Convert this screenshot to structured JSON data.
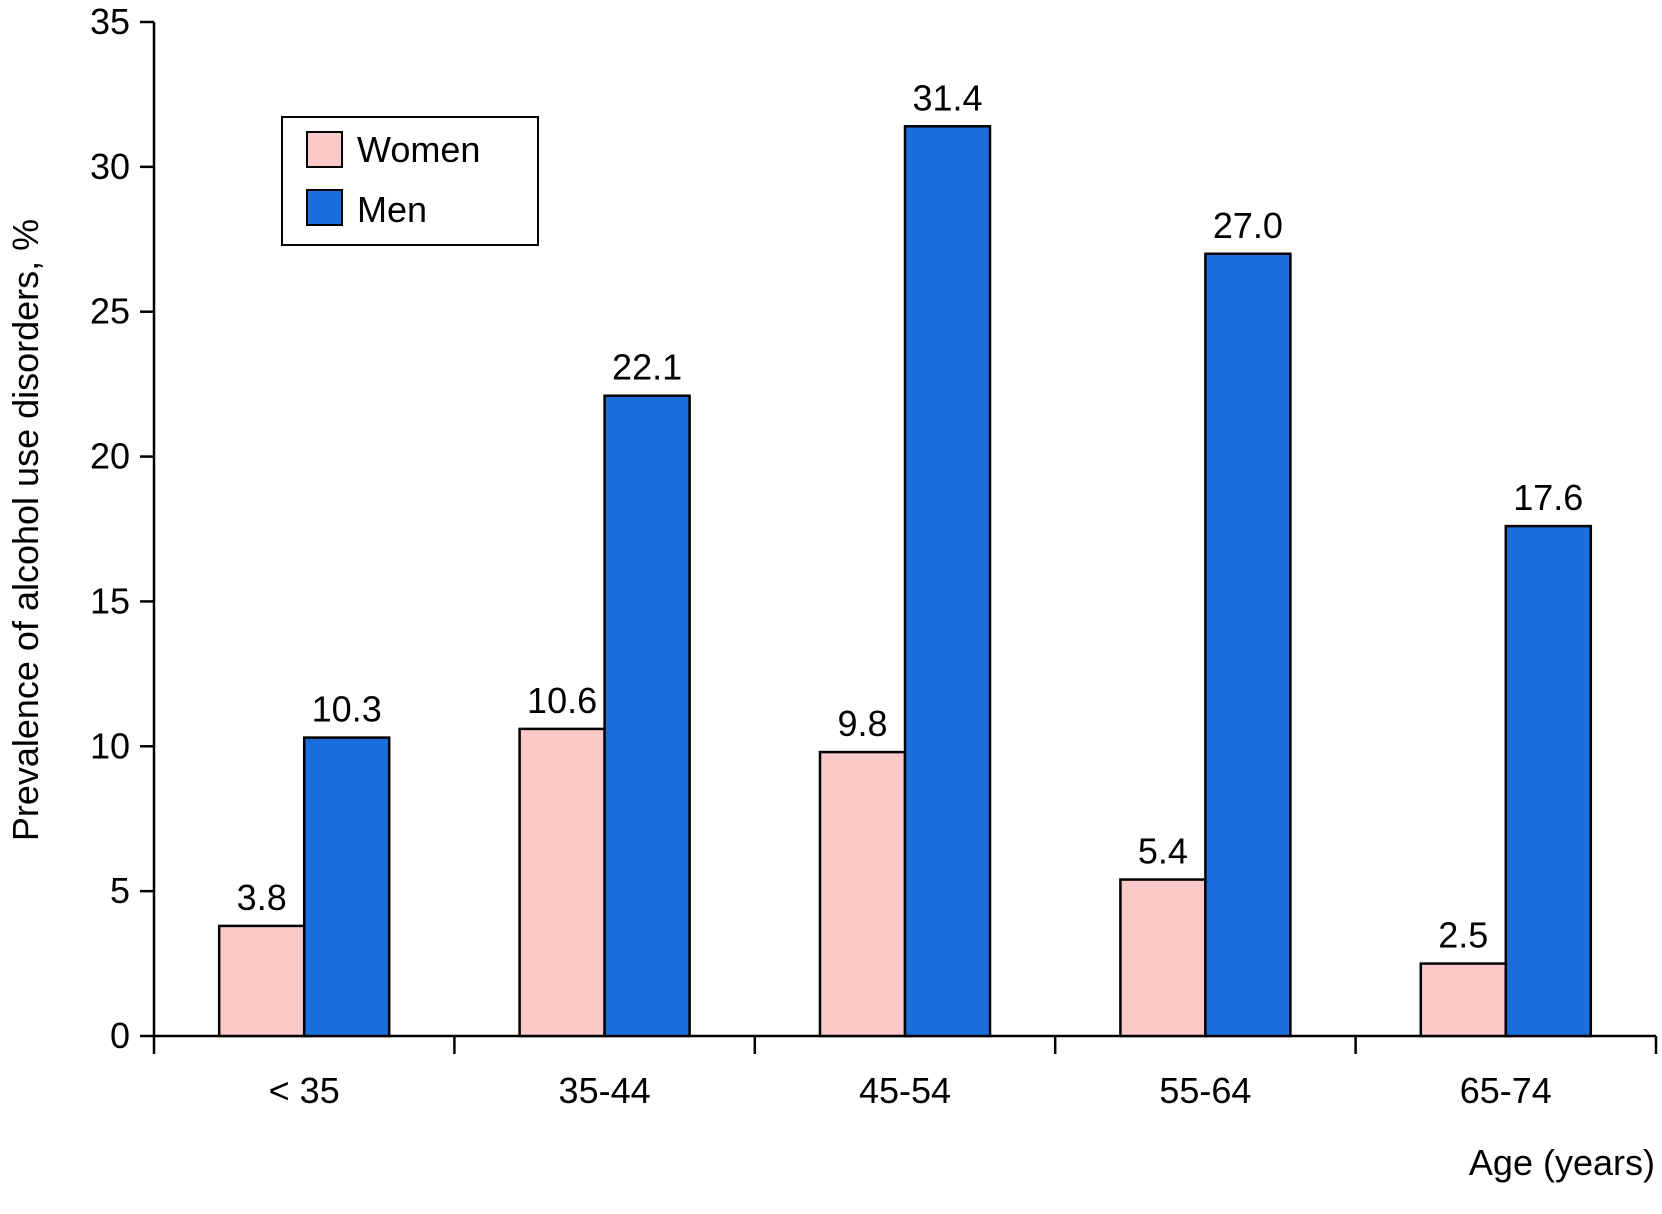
{
  "chart_data": {
    "type": "bar",
    "title": "",
    "xlabel": "Age (years)",
    "ylabel": "Prevalence of alcohol use disorders, %",
    "categories": [
      "< 35",
      "35-44",
      "45-54",
      "55-64",
      "65-74"
    ],
    "series": [
      {
        "name": "Women",
        "color": "#fcc9c9",
        "values": [
          3.8,
          10.6,
          9.8,
          5.4,
          2.5
        ],
        "labels": [
          "3.8",
          "10.6",
          "9.8",
          "5.4",
          "2.5"
        ]
      },
      {
        "name": "Men",
        "color": "#1a6fdc",
        "values": [
          10.3,
          22.1,
          31.4,
          27.0,
          17.6
        ],
        "labels": [
          "10.3",
          "22.1",
          "31.4",
          "27.0",
          "17.6"
        ]
      }
    ],
    "ylim": [
      0,
      35
    ],
    "yticks": [
      "0",
      "5",
      "10",
      "15",
      "20",
      "25",
      "30",
      "35"
    ],
    "grid": false,
    "legend_position": "top-left"
  }
}
